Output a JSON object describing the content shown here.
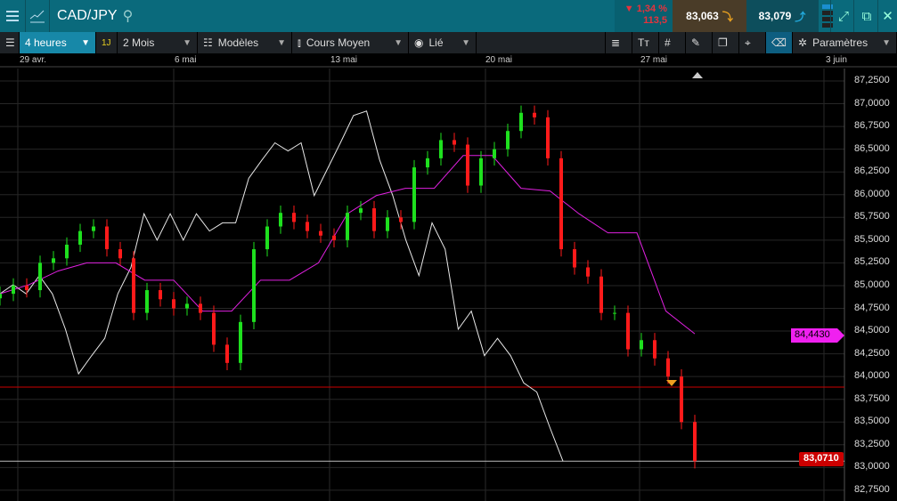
{
  "header": {
    "symbol": "CAD/JPY",
    "change_pct": "1,34 %",
    "change_pts": "113,5",
    "bid": "83,063",
    "ask": "83,079"
  },
  "toolbar": {
    "interval": "4 heures",
    "quick": "1J",
    "range": "2 Mois",
    "templates": "Modèles",
    "indicator": "Cours Moyen",
    "linked": "Lié",
    "settings": "Paramètres"
  },
  "dates": [
    "29 avr.",
    "6 mai",
    "13 mai",
    "20 mai",
    "27 mai",
    "3 juin"
  ],
  "y_labels": [
    "87,2500",
    "87,0000",
    "86,7500",
    "86,5000",
    "86,2500",
    "86,0000",
    "85,7500",
    "85,5000",
    "85,2500",
    "85,0000",
    "84,7500",
    "84,5000",
    "84,2500",
    "84,0000",
    "83,7500",
    "83,5000",
    "83,2500",
    "83,0000",
    "82,7500"
  ],
  "badges": {
    "indicator_value": "84,4430",
    "last_price": "83,0710"
  },
  "colors": {
    "up": "#1ee01e",
    "down": "#ff1a1a",
    "average": "#e020e0",
    "compare": "#e8e8e8",
    "accent": "#0a6a7c"
  },
  "chart_data": {
    "type": "candlestick",
    "ylim": [
      82.75,
      87.25
    ],
    "closes": [
      84.91,
      85.0,
      84.95,
      85.25,
      85.3,
      85.45,
      85.6,
      85.65,
      85.4,
      85.3,
      84.7,
      84.95,
      84.85,
      84.75,
      84.8,
      84.7,
      84.35,
      84.15,
      84.6,
      85.4,
      85.65,
      85.8,
      85.7,
      85.6,
      85.55,
      85.5,
      85.8,
      85.85,
      85.6,
      85.75,
      85.7,
      86.3,
      86.4,
      86.6,
      86.55,
      86.1,
      86.4,
      86.5,
      86.7,
      86.9,
      86.85,
      86.4,
      85.4,
      85.2,
      85.1,
      84.7,
      84.7,
      84.3,
      84.4,
      84.2,
      84.0,
      83.5,
      83.07
    ],
    "average_line": [
      84.91,
      85.01,
      85.16,
      85.25,
      85.25,
      85.06,
      85.06,
      84.72,
      84.72,
      85.06,
      85.06,
      85.25,
      85.79,
      85.99,
      86.07,
      86.07,
      86.43,
      86.43,
      86.07,
      86.04,
      85.79,
      85.58,
      85.58,
      84.72,
      84.47
    ],
    "compare_line": [
      84.91,
      85.01,
      84.91,
      85.11,
      84.91,
      84.52,
      84.03,
      84.23,
      84.42,
      84.91,
      85.2,
      85.79,
      85.5,
      85.79,
      85.5,
      85.79,
      85.6,
      85.69,
      85.69,
      86.18,
      86.38,
      86.57,
      86.48,
      86.57,
      85.99,
      86.28,
      86.57,
      86.87,
      86.92,
      86.38,
      85.99,
      85.5,
      85.11,
      85.69,
      85.4,
      84.52,
      84.72,
      84.23,
      84.42,
      84.23,
      83.93,
      83.83,
      83.44,
      83.07
    ]
  }
}
